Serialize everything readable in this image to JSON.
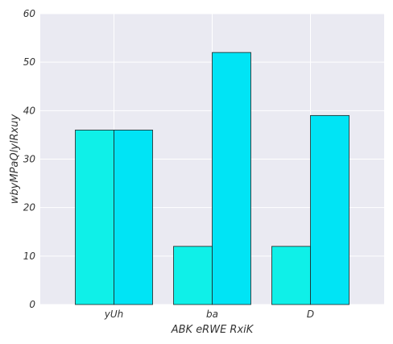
{
  "chart_data": {
    "type": "bar",
    "categories": [
      "yUh",
      "ba",
      "D"
    ],
    "series": [
      {
        "values": [
          36,
          12,
          12
        ]
      },
      {
        "values": [
          36,
          52,
          39
        ]
      }
    ],
    "xlabel": "ABK  eRWE RxiK",
    "ylabel": "wbyMPaQlylRxuy",
    "ylim": [
      0,
      60
    ],
    "yticks": [
      0,
      10,
      20,
      30,
      40,
      50,
      60
    ],
    "grid": true,
    "colors": {
      "plot_background": "#eaeaf2",
      "grid": "#ffffff",
      "series": [
        "#0ff0e8",
        "#00e4f5"
      ],
      "bar_edge": "#222222"
    }
  }
}
